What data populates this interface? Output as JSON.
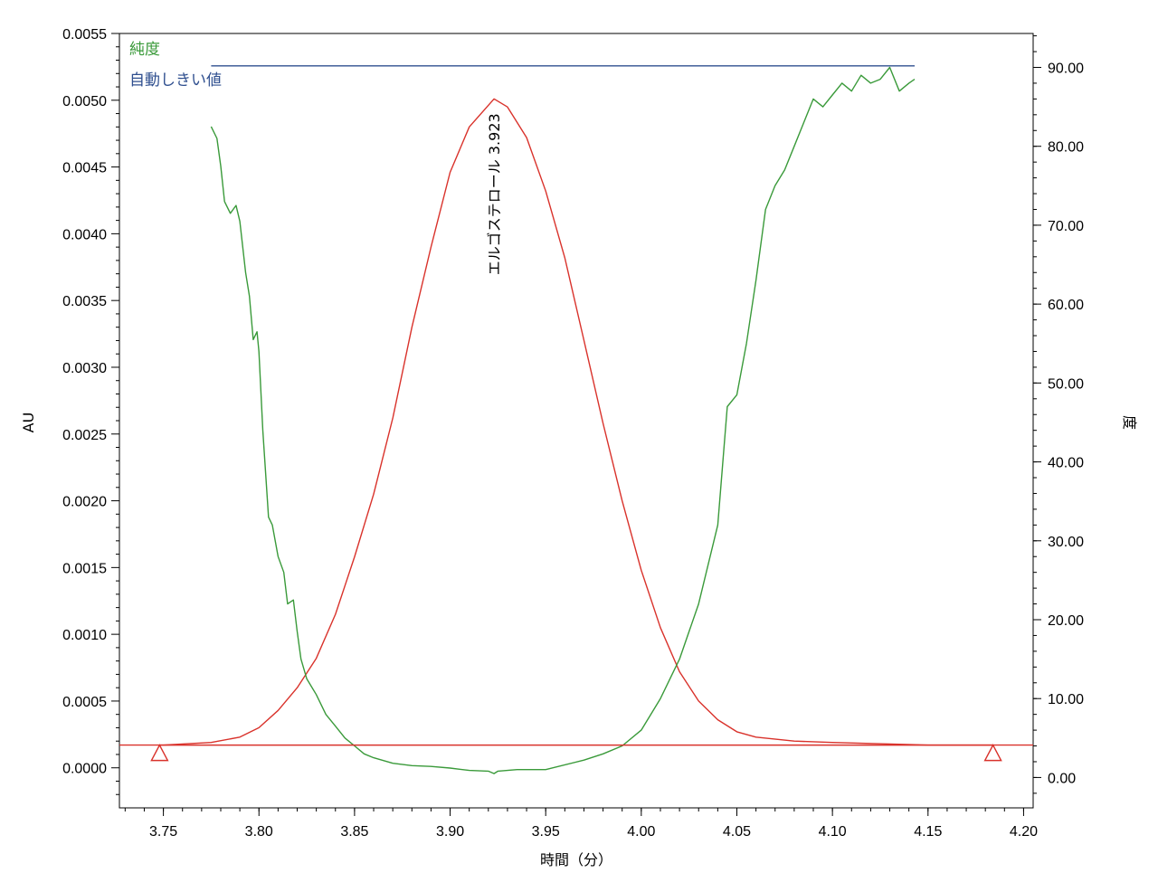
{
  "chart_data": {
    "type": "line",
    "title": "",
    "xlabel": "時間（分）",
    "ylabel_left": "AU",
    "ylabel_right": "度",
    "xlim": [
      3.727,
      4.205
    ],
    "ylim_left": [
      -0.0003,
      0.0055
    ],
    "ylim_right": [
      -3.85,
      94.3
    ],
    "grid": false,
    "legend": {
      "placement": "top-left",
      "entries": [
        {
          "name": "純度",
          "color": "#3a9a3a"
        },
        {
          "name": "自動しきい値",
          "color": "#2f4f8f"
        }
      ]
    },
    "x_ticks": [
      "3.75",
      "3.80",
      "3.85",
      "3.90",
      "3.95",
      "4.00",
      "4.05",
      "4.10",
      "4.15",
      "4.20"
    ],
    "y_left_ticks": [
      "0.0000",
      "0.0005",
      "0.0010",
      "0.0015",
      "0.0020",
      "0.0025",
      "0.0030",
      "0.0035",
      "0.0040",
      "0.0045",
      "0.0050",
      "0.0055"
    ],
    "y_right_ticks": [
      "0.00",
      "10.00",
      "20.00",
      "30.00",
      "40.00",
      "50.00",
      "60.00",
      "70.00",
      "80.00",
      "90.00"
    ],
    "peak_annotation": {
      "text": "エルゴステロール 3.923",
      "x": 3.923,
      "y": 0.00501
    },
    "baseline": {
      "x": [
        3.748,
        4.184
      ],
      "y": 0.00017
    },
    "baseline_markers": [
      {
        "x": 3.748,
        "y": 0.00017
      },
      {
        "x": 4.184,
        "y": 0.00017
      }
    ],
    "series": [
      {
        "name": "",
        "axis": "left",
        "color": "#d9322b",
        "x": [
          3.727,
          3.75,
          3.775,
          3.79,
          3.8,
          3.81,
          3.82,
          3.83,
          3.84,
          3.85,
          3.86,
          3.87,
          3.88,
          3.89,
          3.9,
          3.91,
          3.923,
          3.93,
          3.94,
          3.95,
          3.96,
          3.97,
          3.98,
          3.99,
          4.0,
          4.01,
          4.02,
          4.03,
          4.04,
          4.05,
          4.06,
          4.08,
          4.1,
          4.15,
          4.18,
          4.205
        ],
        "y": [
          0.00017,
          0.00017,
          0.00019,
          0.00023,
          0.0003,
          0.00043,
          0.0006,
          0.00082,
          0.00115,
          0.00158,
          0.00205,
          0.00262,
          0.0033,
          0.0039,
          0.00446,
          0.0048,
          0.00501,
          0.00495,
          0.00472,
          0.00432,
          0.00382,
          0.0032,
          0.00258,
          0.002,
          0.00148,
          0.00105,
          0.00072,
          0.0005,
          0.00036,
          0.00027,
          0.00023,
          0.0002,
          0.00019,
          0.00017,
          0.00017,
          0.00017
        ]
      },
      {
        "name": "純度",
        "axis": "right",
        "color": "#3a9a3a",
        "x": [
          3.775,
          3.778,
          3.78,
          3.782,
          3.785,
          3.788,
          3.79,
          3.793,
          3.795,
          3.797,
          3.799,
          3.8,
          3.802,
          3.805,
          3.807,
          3.81,
          3.813,
          3.815,
          3.818,
          3.82,
          3.822,
          3.825,
          3.83,
          3.835,
          3.84,
          3.845,
          3.85,
          3.855,
          3.86,
          3.87,
          3.88,
          3.89,
          3.9,
          3.91,
          3.92,
          3.923,
          3.925,
          3.935,
          3.95,
          3.97,
          3.98,
          3.99,
          4.0,
          4.01,
          4.02,
          4.03,
          4.04,
          4.045,
          4.05,
          4.055,
          4.06,
          4.065,
          4.07,
          4.075,
          4.08,
          4.085,
          4.09,
          4.095,
          4.1,
          4.105,
          4.11,
          4.115,
          4.12,
          4.125,
          4.13,
          4.135,
          4.14,
          4.143
        ],
        "y": [
          82.5,
          81.0,
          77.5,
          73.0,
          71.5,
          72.5,
          70.5,
          64.0,
          61.0,
          55.5,
          56.5,
          54.0,
          44.0,
          33.0,
          32.0,
          28.0,
          26.0,
          22.0,
          22.5,
          18.5,
          15.0,
          12.5,
          10.5,
          8.0,
          6.5,
          5.0,
          4.0,
          3.0,
          2.5,
          1.8,
          1.5,
          1.4,
          1.2,
          0.9,
          0.8,
          0.5,
          0.8,
          1.0,
          1.0,
          2.2,
          3.0,
          4.0,
          6.0,
          10.0,
          15.0,
          22.0,
          32.0,
          47.0,
          48.5,
          55.0,
          63.0,
          72.0,
          75.0,
          77.0,
          80.0,
          83.0,
          86.0,
          85.0,
          86.5,
          88.0,
          87.0,
          89.0,
          88.0,
          88.5,
          90.0,
          87.0,
          88.0,
          88.5
        ]
      },
      {
        "name": "自動しきい値",
        "axis": "right",
        "color": "#2f4f8f",
        "x": [
          3.775,
          4.143
        ],
        "y": [
          90.2,
          90.2
        ]
      }
    ]
  }
}
